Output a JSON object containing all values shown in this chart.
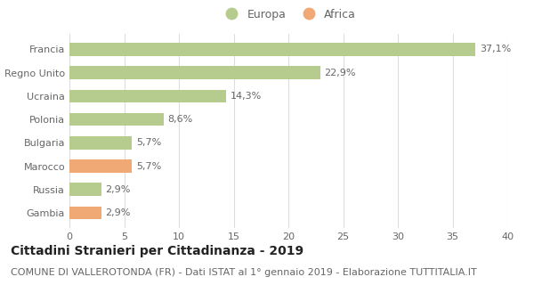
{
  "categories": [
    "Francia",
    "Regno Unito",
    "Ucraina",
    "Polonia",
    "Bulgaria",
    "Marocco",
    "Russia",
    "Gambia"
  ],
  "values": [
    37.1,
    22.9,
    14.3,
    8.6,
    5.7,
    5.7,
    2.9,
    2.9
  ],
  "bar_colors": [
    "#b5cc8e",
    "#b5cc8e",
    "#b5cc8e",
    "#b5cc8e",
    "#b5cc8e",
    "#f0a875",
    "#b5cc8e",
    "#f0a875"
  ],
  "labels": [
    "37,1%",
    "22,9%",
    "14,3%",
    "8,6%",
    "5,7%",
    "5,7%",
    "2,9%",
    "2,9%"
  ],
  "xlim": [
    0,
    40
  ],
  "xticks": [
    0,
    5,
    10,
    15,
    20,
    25,
    30,
    35,
    40
  ],
  "legend_europa_color": "#b5cc8e",
  "legend_africa_color": "#f0a875",
  "title": "Cittadini Stranieri per Cittadinanza - 2019",
  "subtitle": "COMUNE DI VALLEROTONDA (FR) - Dati ISTAT al 1° gennaio 2019 - Elaborazione TUTTITALIA.IT",
  "title_fontsize": 10,
  "subtitle_fontsize": 8,
  "label_fontsize": 8,
  "tick_fontsize": 8,
  "background_color": "#ffffff",
  "grid_color": "#dddddd",
  "bar_height": 0.55
}
